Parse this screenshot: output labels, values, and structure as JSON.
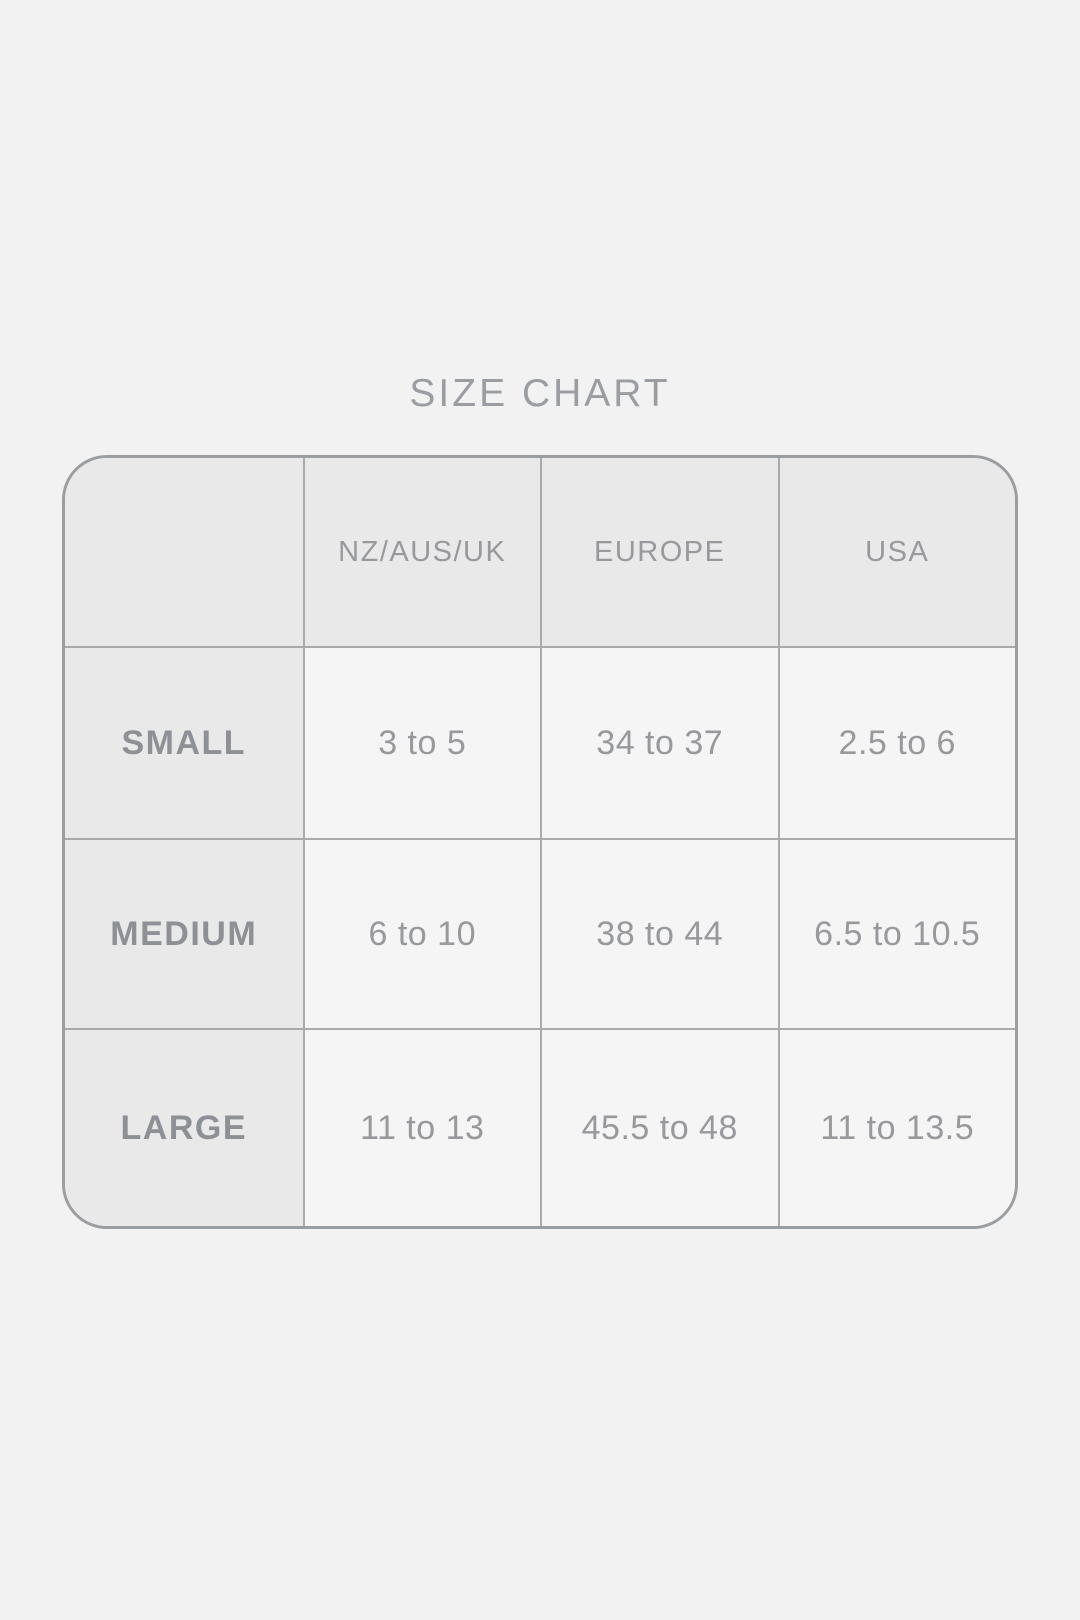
{
  "page": {
    "title": "SIZE CHART"
  },
  "chart_data": {
    "type": "table",
    "title": "SIZE CHART",
    "columns": [
      "",
      "NZ/AUS/UK",
      "EUROPE",
      "USA"
    ],
    "rows": [
      [
        "SMALL",
        "3 to 5",
        "34 to 37",
        "2.5 to 6"
      ],
      [
        "MEDIUM",
        "6 to 10",
        "38 to 44",
        "6.5 to 10.5"
      ],
      [
        "LARGE",
        "11 to 13",
        "45.5 to 48",
        "11 to 13.5"
      ]
    ],
    "layout_hints": {
      "header_row_shaded": true,
      "first_column_shaded": true,
      "rounded_corners": true,
      "grid_on": true
    }
  },
  "colors": {
    "page_bg": "#f2f2f2",
    "cell_dark": "#e9e9ea",
    "cell_light": "#f5f5f5",
    "grid_line": "#a8aaac",
    "border": "#9b9ea1",
    "title_text": "#9a9da1",
    "header_text": "#97999d",
    "value_text": "#97999d",
    "label_text": "#8d9094"
  }
}
